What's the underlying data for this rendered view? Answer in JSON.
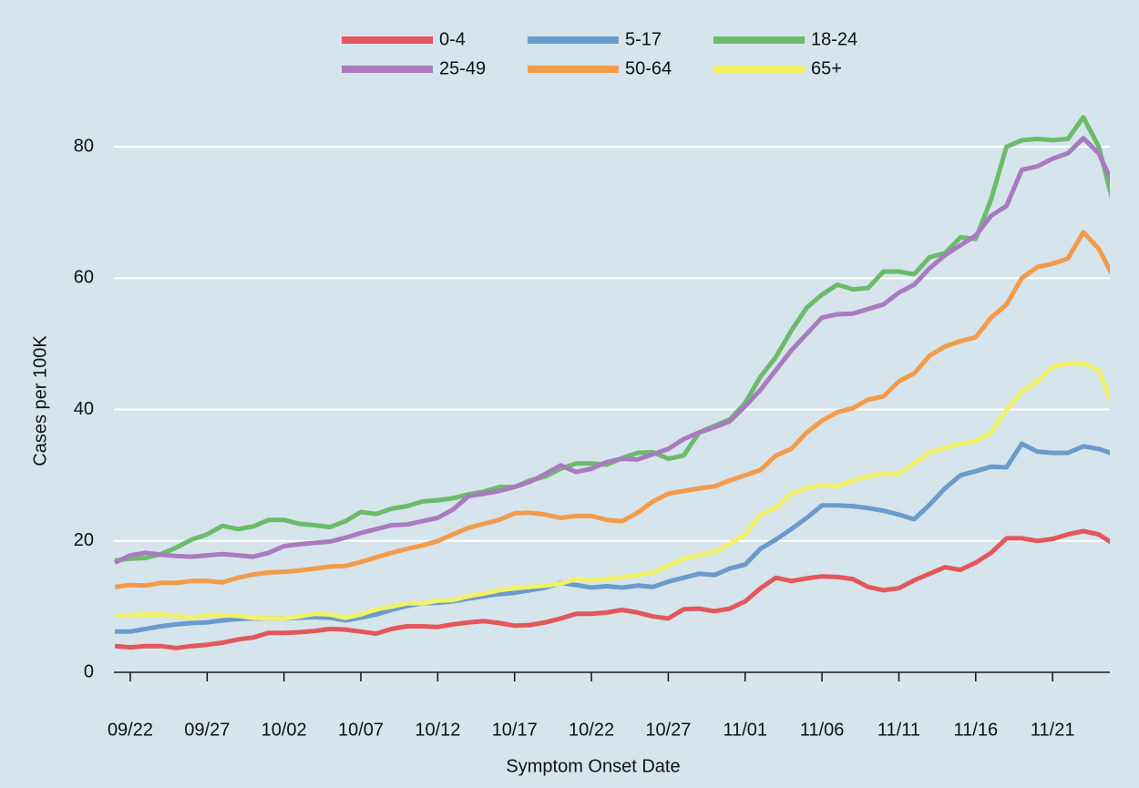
{
  "chart_data": {
    "type": "line",
    "x_label": "Symptom Onset Date",
    "y_label": "Cases per 100K",
    "x": [
      "09/21",
      "09/22",
      "09/23",
      "09/24",
      "09/25",
      "09/26",
      "09/27",
      "09/28",
      "09/29",
      "09/30",
      "10/01",
      "10/02",
      "10/03",
      "10/04",
      "10/05",
      "10/06",
      "10/07",
      "10/08",
      "10/09",
      "10/10",
      "10/11",
      "10/12",
      "10/13",
      "10/14",
      "10/15",
      "10/16",
      "10/17",
      "10/18",
      "10/19",
      "10/20",
      "10/21",
      "10/22",
      "10/23",
      "10/24",
      "10/25",
      "10/26",
      "10/27",
      "10/28",
      "10/29",
      "10/30",
      "10/31",
      "11/01",
      "11/02",
      "11/03",
      "11/04",
      "11/05",
      "11/06",
      "11/07",
      "11/08",
      "11/09",
      "11/10",
      "11/11",
      "11/12",
      "11/13",
      "11/14",
      "11/15",
      "11/16",
      "11/17",
      "11/18",
      "11/19",
      "11/20",
      "11/21",
      "11/22",
      "11/23",
      "11/24",
      "11/25"
    ],
    "xticks": [
      "09/22",
      "09/27",
      "10/02",
      "10/07",
      "10/12",
      "10/17",
      "10/22",
      "10/27",
      "11/01",
      "11/06",
      "11/11",
      "11/16",
      "11/21"
    ],
    "ylim": [
      0,
      90
    ],
    "yticks": [
      0,
      20,
      40,
      60,
      80
    ],
    "grid": true,
    "series": [
      {
        "name": "0-4",
        "color": "#e2575c",
        "values": [
          4.0,
          3.8,
          4.0,
          4.0,
          3.7,
          4.0,
          4.2,
          4.5,
          5.0,
          5.3,
          6.0,
          6.0,
          6.1,
          6.3,
          6.6,
          6.5,
          6.2,
          5.9,
          6.6,
          7.0,
          7.0,
          6.9,
          7.3,
          7.6,
          7.8,
          7.5,
          7.1,
          7.2,
          7.6,
          8.2,
          8.9,
          8.9,
          9.1,
          9.5,
          9.1,
          8.5,
          8.2,
          9.6,
          9.7,
          9.3,
          9.7,
          10.8,
          12.8,
          14.4,
          13.9,
          14.3,
          14.6,
          14.5,
          14.2,
          13.0,
          12.5,
          12.8,
          14.0,
          15.0,
          16.0,
          15.6,
          16.7,
          18.2,
          20.4,
          20.4,
          20.0,
          20.3,
          21.0,
          21.5,
          21.0,
          19.5
        ]
      },
      {
        "name": "5-17",
        "color": "#6a9bcc",
        "values": [
          6.2,
          6.2,
          6.6,
          7.0,
          7.3,
          7.5,
          7.6,
          7.9,
          8.1,
          8.2,
          8.2,
          8.2,
          8.3,
          8.4,
          8.3,
          7.9,
          8.3,
          8.8,
          9.5,
          10.1,
          10.5,
          10.6,
          10.8,
          11.2,
          11.6,
          11.9,
          12.1,
          12.5,
          12.9,
          13.6,
          13.3,
          12.9,
          13.1,
          12.9,
          13.2,
          13.0,
          13.8,
          14.4,
          15.0,
          14.8,
          15.8,
          16.4,
          18.8,
          20.2,
          21.8,
          23.5,
          25.4,
          25.4,
          25.3,
          25.0,
          24.6,
          24.0,
          23.3,
          25.5,
          28.0,
          30.0,
          30.6,
          31.3,
          31.2,
          34.8,
          33.6,
          33.4,
          33.4,
          34.4,
          34.0,
          33.2
        ]
      },
      {
        "name": "18-24",
        "color": "#6cbb6b",
        "values": [
          17.0,
          17.3,
          17.4,
          18.0,
          19.0,
          20.2,
          21.0,
          22.3,
          21.8,
          22.2,
          23.2,
          23.2,
          22.6,
          22.4,
          22.1,
          23.0,
          24.4,
          24.1,
          24.9,
          25.3,
          26.0,
          26.2,
          26.5,
          27.1,
          27.5,
          28.2,
          28.2,
          29.2,
          29.8,
          31.0,
          31.8,
          31.8,
          31.6,
          32.6,
          33.4,
          33.5,
          32.5,
          33.0,
          36.5,
          37.5,
          38.5,
          41.0,
          45.0,
          48.0,
          52.0,
          55.5,
          57.5,
          59.0,
          58.3,
          58.5,
          61.0,
          61.0,
          60.6,
          63.2,
          63.8,
          66.2,
          66.0,
          72.0,
          80.0,
          81.0,
          81.2,
          81.0,
          81.2,
          84.5,
          80.0,
          71.0
        ]
      },
      {
        "name": "25-49",
        "color": "#a87bc0",
        "values": [
          16.7,
          17.8,
          18.2,
          17.9,
          17.7,
          17.6,
          17.8,
          18.0,
          17.8,
          17.6,
          18.2,
          19.2,
          19.5,
          19.7,
          19.9,
          20.5,
          21.2,
          21.8,
          22.4,
          22.5,
          23.0,
          23.5,
          24.8,
          26.8,
          27.2,
          27.6,
          28.2,
          29.0,
          30.2,
          31.5,
          30.5,
          31.0,
          32.0,
          32.5,
          32.4,
          33.2,
          34.0,
          35.5,
          36.5,
          37.3,
          38.2,
          40.5,
          43.0,
          46.0,
          49.0,
          51.5,
          54.0,
          54.5,
          54.6,
          55.3,
          56.0,
          57.8,
          59.0,
          61.5,
          63.5,
          65.0,
          66.5,
          69.5,
          71.0,
          76.5,
          77.0,
          78.2,
          79.0,
          81.3,
          79.0,
          74.0
        ]
      },
      {
        "name": "50-64",
        "color": "#f29b4b",
        "values": [
          13.0,
          13.3,
          13.2,
          13.6,
          13.6,
          13.9,
          13.9,
          13.7,
          14.4,
          14.9,
          15.2,
          15.3,
          15.5,
          15.8,
          16.1,
          16.2,
          16.8,
          17.5,
          18.2,
          18.8,
          19.3,
          20.0,
          21.0,
          22.0,
          22.6,
          23.2,
          24.2,
          24.3,
          24.0,
          23.5,
          23.8,
          23.8,
          23.2,
          23.0,
          24.3,
          26.0,
          27.2,
          27.6,
          28.0,
          28.3,
          29.2,
          30.0,
          30.8,
          33.0,
          34.0,
          36.5,
          38.3,
          39.6,
          40.2,
          41.5,
          42.0,
          44.3,
          45.5,
          48.2,
          49.6,
          50.4,
          51.0,
          54.0,
          56.0,
          60.0,
          61.7,
          62.2,
          63.0,
          67.0,
          64.5,
          60.0
        ]
      },
      {
        "name": "65+",
        "color": "#f2f26a",
        "values": [
          8.6,
          8.7,
          8.8,
          8.8,
          8.6,
          8.3,
          8.7,
          8.7,
          8.6,
          8.3,
          8.2,
          8.2,
          8.5,
          8.9,
          8.8,
          8.3,
          8.8,
          9.6,
          10.0,
          10.5,
          10.5,
          10.9,
          11.0,
          11.6,
          12.0,
          12.5,
          12.8,
          13.0,
          13.2,
          13.5,
          14.2,
          14.0,
          14.2,
          14.5,
          14.8,
          15.2,
          16.2,
          17.3,
          17.8,
          18.3,
          19.6,
          21.0,
          24.0,
          25.0,
          27.2,
          28.0,
          28.5,
          28.3,
          29.2,
          29.8,
          30.3,
          30.2,
          31.8,
          33.5,
          34.2,
          34.8,
          35.2,
          36.5,
          40.0,
          42.7,
          44.3,
          46.5,
          47.0,
          47.0,
          46.0,
          40.0
        ]
      }
    ]
  }
}
